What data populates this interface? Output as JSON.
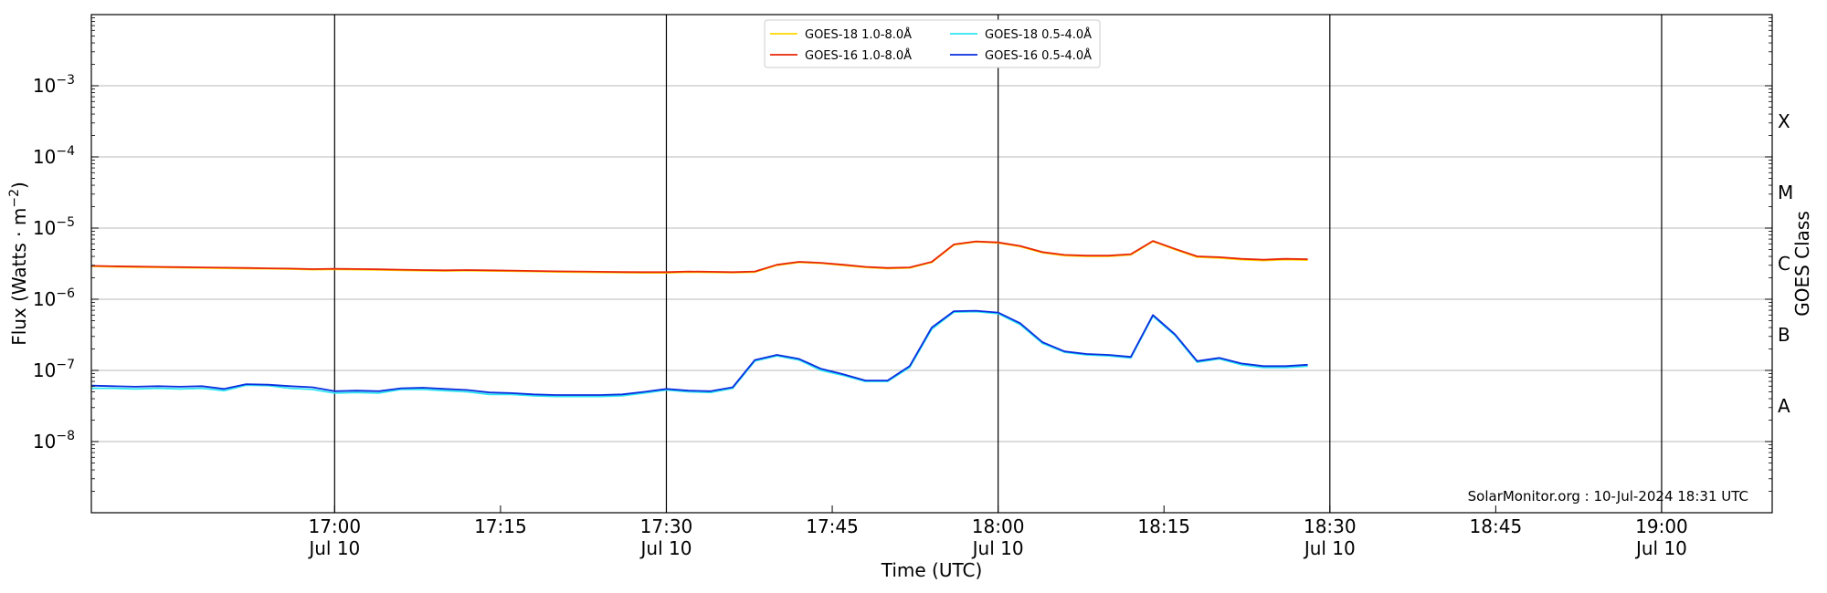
{
  "chart_data": {
    "type": "line",
    "ylabel": "Flux (Watts · m",
    "ylabel_sup": "−2",
    "ylabel_close": ")",
    "xlabel": "Time (UTC)",
    "right_label": "GOES Class",
    "watermark": "SolarMonitor.org : 10-Jul-2024 18:31 UTC",
    "y_scale": "log",
    "ylim": [
      1e-09,
      0.01
    ],
    "xlim": [
      "16:38",
      "19:10"
    ],
    "grid": "horizontal at decades, vertical black lines every 30 min",
    "legend_position": "top-center",
    "y_ticks": [
      {
        "value": 1e-08,
        "base": "10",
        "exp": "−8"
      },
      {
        "value": 1e-07,
        "base": "10",
        "exp": "−7"
      },
      {
        "value": 1e-06,
        "base": "10",
        "exp": "−6"
      },
      {
        "value": 1e-05,
        "base": "10",
        "exp": "−5"
      },
      {
        "value": 0.0001,
        "base": "10",
        "exp": "−4"
      },
      {
        "value": 0.001,
        "base": "10",
        "exp": "−3"
      }
    ],
    "x_ticks": [
      {
        "time": "17:00",
        "label": "17:00",
        "sub": "Jul 10"
      },
      {
        "time": "17:15",
        "label": "17:15",
        "sub": ""
      },
      {
        "time": "17:30",
        "label": "17:30",
        "sub": "Jul 10"
      },
      {
        "time": "17:45",
        "label": "17:45",
        "sub": ""
      },
      {
        "time": "18:00",
        "label": "18:00",
        "sub": "Jul 10"
      },
      {
        "time": "18:15",
        "label": "18:15",
        "sub": ""
      },
      {
        "time": "18:30",
        "label": "18:30",
        "sub": "Jul 10"
      },
      {
        "time": "18:45",
        "label": "18:45",
        "sub": ""
      },
      {
        "time": "19:00",
        "label": "19:00",
        "sub": "Jul 10"
      }
    ],
    "vlines": [
      "17:00",
      "17:30",
      "18:00",
      "18:30",
      "19:00"
    ],
    "class_labels": [
      {
        "label": "X",
        "value": 0.000316
      },
      {
        "label": "M",
        "value": 3.16e-05
      },
      {
        "label": "C",
        "value": 3.16e-06
      },
      {
        "label": "B",
        "value": 3.16e-07
      },
      {
        "label": "A",
        "value": 3.16e-08
      }
    ],
    "times": [
      "16:38",
      "16:40",
      "16:42",
      "16:44",
      "16:46",
      "16:48",
      "16:50",
      "16:52",
      "16:54",
      "16:56",
      "16:58",
      "17:00",
      "17:02",
      "17:04",
      "17:06",
      "17:08",
      "17:10",
      "17:12",
      "17:14",
      "17:16",
      "17:18",
      "17:20",
      "17:22",
      "17:24",
      "17:26",
      "17:28",
      "17:30",
      "17:32",
      "17:34",
      "17:36",
      "17:38",
      "17:40",
      "17:42",
      "17:44",
      "17:46",
      "17:48",
      "17:50",
      "17:52",
      "17:54",
      "17:56",
      "17:58",
      "18:00",
      "18:02",
      "18:04",
      "18:06",
      "18:08",
      "18:10",
      "18:12",
      "18:14",
      "18:16",
      "18:18",
      "18:20",
      "18:22",
      "18:24",
      "18:26",
      "18:28"
    ],
    "series": [
      {
        "name": "GOES-18 1.0-8.0Å",
        "color": "#ffd700",
        "values": [
          2.9e-06,
          2.85e-06,
          2.83e-06,
          2.8e-06,
          2.78e-06,
          2.75e-06,
          2.72e-06,
          2.7e-06,
          2.68e-06,
          2.65e-06,
          2.6e-06,
          2.62e-06,
          2.6e-06,
          2.58e-06,
          2.55e-06,
          2.52e-06,
          2.5e-06,
          2.52e-06,
          2.5e-06,
          2.48e-06,
          2.45e-06,
          2.42e-06,
          2.4e-06,
          2.38e-06,
          2.36e-06,
          2.35e-06,
          2.35e-06,
          2.4e-06,
          2.38e-06,
          2.36e-06,
          2.4e-06,
          3e-06,
          3.3e-06,
          3.2e-06,
          3e-06,
          2.8e-06,
          2.7e-06,
          2.75e-06,
          3.3e-06,
          5.8e-06,
          6.4e-06,
          6.2e-06,
          5.5e-06,
          4.5e-06,
          4.1e-06,
          4e-06,
          4e-06,
          4.2e-06,
          6.5e-06,
          5e-06,
          3.9e-06,
          3.8e-06,
          3.6e-06,
          3.5e-06,
          3.6e-06,
          3.55e-06
        ]
      },
      {
        "name": "GOES-16 1.0-8.0Å",
        "color": "#e8280a",
        "values": [
          2.95e-06,
          2.9e-06,
          2.88e-06,
          2.85e-06,
          2.83e-06,
          2.8e-06,
          2.78e-06,
          2.75e-06,
          2.72e-06,
          2.7e-06,
          2.65e-06,
          2.68e-06,
          2.66e-06,
          2.63e-06,
          2.6e-06,
          2.57e-06,
          2.55e-06,
          2.57e-06,
          2.55e-06,
          2.53e-06,
          2.5e-06,
          2.47e-06,
          2.45e-06,
          2.43e-06,
          2.41e-06,
          2.4e-06,
          2.4e-06,
          2.45e-06,
          2.43e-06,
          2.4e-06,
          2.45e-06,
          3.05e-06,
          3.35e-06,
          3.25e-06,
          3.05e-06,
          2.85e-06,
          2.75e-06,
          2.8e-06,
          3.35e-06,
          5.9e-06,
          6.5e-06,
          6.3e-06,
          5.6e-06,
          4.6e-06,
          4.2e-06,
          4.1e-06,
          4.1e-06,
          4.3e-06,
          6.6e-06,
          5.1e-06,
          4e-06,
          3.9e-06,
          3.7e-06,
          3.6e-06,
          3.7e-06,
          3.65e-06
        ]
      },
      {
        "name": "GOES-18 0.5-4.0Å",
        "color": "#2ee6f0",
        "values": [
          5.6e-08,
          5.6e-08,
          5.5e-08,
          5.6e-08,
          5.5e-08,
          5.6e-08,
          5.2e-08,
          6.2e-08,
          6.1e-08,
          5.6e-08,
          5.4e-08,
          4.8e-08,
          4.9e-08,
          4.8e-08,
          5.4e-08,
          5.4e-08,
          5.2e-08,
          5e-08,
          4.6e-08,
          4.6e-08,
          4.4e-08,
          4.3e-08,
          4.3e-08,
          4.3e-08,
          4.4e-08,
          4.8e-08,
          5.3e-08,
          5e-08,
          4.9e-08,
          5.6e-08,
          1.35e-07,
          1.6e-07,
          1.4e-07,
          1e-07,
          8.5e-08,
          7e-08,
          7e-08,
          1.1e-07,
          3.8e-07,
          6.6e-07,
          6.7e-07,
          6.3e-07,
          4.4e-07,
          2.4e-07,
          1.8e-07,
          1.65e-07,
          1.6e-07,
          1.5e-07,
          5.8e-07,
          3.1e-07,
          1.3e-07,
          1.45e-07,
          1.2e-07,
          1.1e-07,
          1.1e-07,
          1.15e-07
        ]
      },
      {
        "name": "GOES-16 0.5-4.0Å",
        "color": "#0a2ee0",
        "values": [
          6.1e-08,
          6e-08,
          5.9e-08,
          6e-08,
          5.9e-08,
          6e-08,
          5.5e-08,
          6.4e-08,
          6.3e-08,
          6e-08,
          5.8e-08,
          5.1e-08,
          5.2e-08,
          5.1e-08,
          5.6e-08,
          5.7e-08,
          5.5e-08,
          5.3e-08,
          4.9e-08,
          4.8e-08,
          4.6e-08,
          4.5e-08,
          4.5e-08,
          4.5e-08,
          4.6e-08,
          5e-08,
          5.5e-08,
          5.2e-08,
          5.1e-08,
          5.8e-08,
          1.4e-07,
          1.65e-07,
          1.45e-07,
          1.05e-07,
          8.8e-08,
          7.2e-08,
          7.2e-08,
          1.15e-07,
          4e-07,
          6.8e-07,
          6.9e-07,
          6.5e-07,
          4.6e-07,
          2.5e-07,
          1.85e-07,
          1.7e-07,
          1.65e-07,
          1.55e-07,
          6e-07,
          3.2e-07,
          1.35e-07,
          1.5e-07,
          1.25e-07,
          1.15e-07,
          1.15e-07,
          1.2e-07
        ]
      }
    ]
  }
}
